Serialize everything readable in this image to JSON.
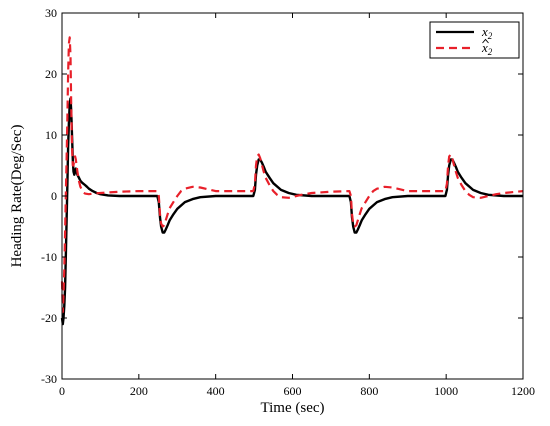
{
  "chart_data": {
    "type": "line",
    "title": "",
    "xlabel": "Time (sec)",
    "ylabel": "Heading Rate(Deg/Sec)",
    "xlim": [
      0,
      1200
    ],
    "ylim": [
      -30,
      30
    ],
    "xticks": [
      0,
      200,
      400,
      600,
      800,
      1000,
      1200
    ],
    "yticks": [
      -30,
      -20,
      -10,
      0,
      10,
      20,
      30
    ],
    "grid": false,
    "legend_position": "top-right",
    "series": [
      {
        "name": "x2",
        "legend_base": "x",
        "legend_sub": "2",
        "legend_hat": false,
        "color": "#000000",
        "dash": "solid",
        "x": [
          0,
          2,
          4,
          6,
          8,
          10,
          12,
          14,
          16,
          18,
          20,
          22,
          24,
          26,
          28,
          30,
          32,
          34,
          36,
          38,
          40,
          44,
          48,
          52,
          56,
          60,
          65,
          70,
          80,
          90,
          100,
          120,
          150,
          200,
          248,
          252,
          255,
          258,
          262,
          266,
          270,
          275,
          280,
          290,
          300,
          320,
          340,
          360,
          400,
          450,
          498,
          502,
          505,
          508,
          512,
          516,
          520,
          525,
          530,
          540,
          550,
          570,
          590,
          610,
          650,
          700,
          748,
          752,
          755,
          758,
          762,
          766,
          770,
          775,
          780,
          790,
          800,
          820,
          840,
          860,
          900,
          950,
          998,
          1002,
          1005,
          1008,
          1012,
          1016,
          1020,
          1025,
          1030,
          1040,
          1050,
          1070,
          1090,
          1110,
          1150,
          1200
        ],
        "y": [
          -20,
          -21,
          -20,
          -18,
          -15,
          -10,
          -4,
          2,
          8,
          12,
          15,
          16,
          14,
          10,
          6,
          4,
          3.5,
          4,
          4.5,
          4,
          3.5,
          3,
          2.5,
          2.2,
          2,
          1.8,
          1.5,
          1.2,
          0.8,
          0.5,
          0.3,
          0.1,
          0,
          0,
          0,
          -1,
          -3.5,
          -5,
          -6,
          -6,
          -5.5,
          -4.8,
          -4,
          -3,
          -2.1,
          -1,
          -0.5,
          -0.2,
          0,
          0,
          0,
          1,
          3.5,
          5,
          6,
          6,
          5.5,
          4.8,
          4,
          3,
          2.1,
          1,
          0.5,
          0.2,
          0,
          0,
          0,
          -1,
          -3.5,
          -5,
          -6,
          -6,
          -5.5,
          -4.8,
          -4,
          -3,
          -2.1,
          -1,
          -0.5,
          -0.2,
          0,
          0,
          0,
          1,
          3.5,
          5,
          6,
          6,
          5.5,
          4.8,
          4,
          3,
          2.1,
          1,
          0.5,
          0.2,
          0,
          0
        ]
      },
      {
        "name": "x̂2",
        "legend_base": "x",
        "legend_sub": "2",
        "legend_hat": true,
        "color": "#e8202a",
        "dash": "dashed",
        "x": [
          0,
          2,
          4,
          6,
          8,
          10,
          12,
          14,
          16,
          18,
          20,
          22,
          24,
          26,
          28,
          30,
          32,
          34,
          36,
          38,
          40,
          44,
          48,
          52,
          56,
          60,
          70,
          80,
          100,
          150,
          200,
          248,
          252,
          255,
          258,
          262,
          266,
          270,
          275,
          280,
          290,
          300,
          310,
          320,
          340,
          360,
          380,
          400,
          450,
          498,
          502,
          505,
          508,
          512,
          516,
          520,
          525,
          530,
          540,
          550,
          560,
          570,
          590,
          610,
          630,
          650,
          700,
          748,
          752,
          755,
          758,
          762,
          766,
          770,
          775,
          780,
          790,
          800,
          810,
          820,
          840,
          860,
          880,
          900,
          950,
          998,
          1002,
          1005,
          1008,
          1012,
          1016,
          1020,
          1025,
          1030,
          1040,
          1050,
          1060,
          1070,
          1090,
          1110,
          1130,
          1150,
          1200
        ],
        "y": [
          -14,
          -19,
          -16,
          -12,
          -6,
          0,
          6,
          13,
          20,
          25,
          26,
          23,
          15,
          8,
          5,
          5,
          6,
          6.5,
          6,
          5,
          4,
          2.5,
          1.5,
          1,
          0.6,
          0.4,
          0.3,
          0.4,
          0.5,
          0.7,
          0.8,
          0.8,
          0,
          -3,
          -4.5,
          -5,
          -4.8,
          -4,
          -3,
          -2,
          -1,
          0,
          0.8,
          1.2,
          1.5,
          1.4,
          1.1,
          0.8,
          0.8,
          0.8,
          2,
          5,
          6.5,
          6.8,
          6.2,
          5.2,
          4,
          3,
          1.8,
          0.8,
          0.2,
          -0.2,
          -0.3,
          0,
          0.3,
          0.5,
          0.7,
          0.8,
          0,
          -3,
          -4.5,
          -5,
          -4.8,
          -4,
          -3,
          -2,
          -1,
          0,
          0.8,
          1.2,
          1.5,
          1.4,
          1.1,
          0.8,
          0.8,
          0.8,
          2,
          5,
          6.5,
          6.8,
          6.2,
          5.2,
          4,
          3,
          1.8,
          0.8,
          0.2,
          -0.2,
          -0.3,
          0,
          0.3,
          0.5,
          0.8
        ]
      }
    ]
  }
}
